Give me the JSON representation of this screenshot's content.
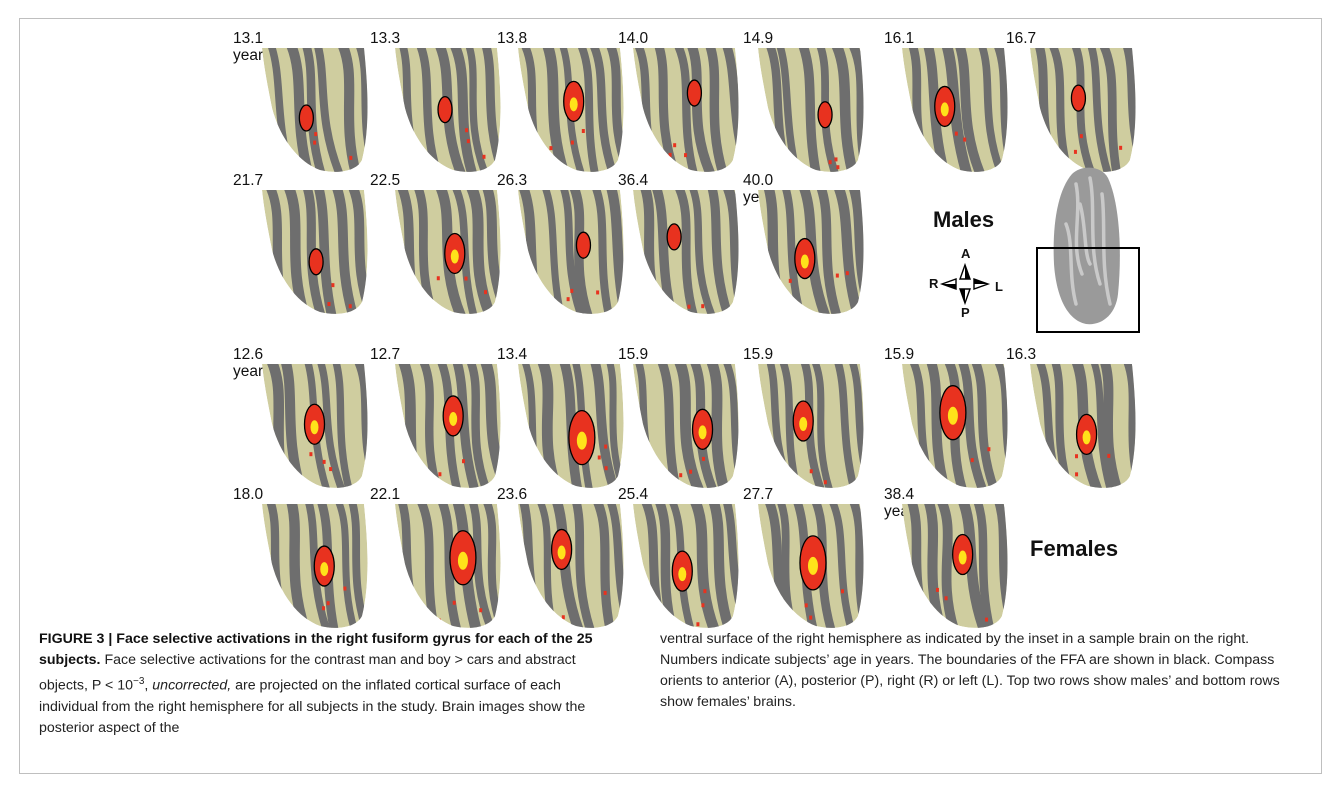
{
  "figure": {
    "rows": [
      {
        "group": "male",
        "subjects": [
          {
            "age": "13.1",
            "unit": "years"
          },
          {
            "age": "13.3"
          },
          {
            "age": "13.8"
          },
          {
            "age": "14.0"
          },
          {
            "age": "14.9"
          },
          {
            "age": "16.1"
          },
          {
            "age": "16.7"
          }
        ]
      },
      {
        "group": "male",
        "subjects": [
          {
            "age": "21.7"
          },
          {
            "age": "22.5"
          },
          {
            "age": "26.3"
          },
          {
            "age": "36.4"
          },
          {
            "age": "40.0",
            "unit": "years"
          }
        ]
      },
      {
        "group": "female",
        "subjects": [
          {
            "age": "12.6",
            "unit": "years"
          },
          {
            "age": "12.7"
          },
          {
            "age": "13.4"
          },
          {
            "age": "15.9"
          },
          {
            "age": "15.9"
          },
          {
            "age": "15.9"
          },
          {
            "age": "16.3"
          }
        ]
      },
      {
        "group": "female",
        "subjects": [
          {
            "age": "18.0"
          },
          {
            "age": "22.1"
          },
          {
            "age": "23.6"
          },
          {
            "age": "25.4"
          },
          {
            "age": "27.7"
          },
          {
            "age": "38.4",
            "unit": "years"
          }
        ]
      }
    ],
    "labels": {
      "males": "Males",
      "females": "Females"
    },
    "compass": {
      "anterior": "A",
      "posterior": "P",
      "right": "R",
      "left": "L"
    },
    "colors": {
      "inflated_gyri": "#cfcd9f",
      "inflated_sulci": "#6e6e6e",
      "activation": "#e8321f",
      "activation_peak": "#ffe21a",
      "ffa_boundary": "#000000",
      "inset_brain": "#9a9a9a"
    }
  },
  "caption": {
    "label": "FIGURE 3 | Face selective activations in the right fusiform gyrus for each of the 25 subjects.",
    "text_left_a": " Face selective activations for the contrast man and boy > cars and abstract objects, P < 10",
    "exponent": "−3",
    "text_left_b": ", ",
    "italic": "uncorrected,",
    "text_left_c": " are projected on the inflated cortical surface of each individual from the right hemisphere for all subjects in the study. Brain images show the posterior aspect of the",
    "text_right": "ventral surface of the right hemisphere as indicated by the inset in a sample brain on the right. Numbers indicate subjects’ age in years. The boundaries of the FFA are shown in black. Compass orients to anterior (A), posterior (P), right (R) or left (L). Top two rows show males’ and bottom rows show females’ brains."
  }
}
